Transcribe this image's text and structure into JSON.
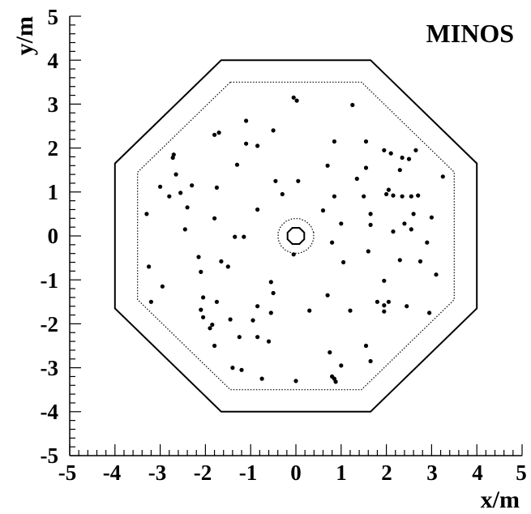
{
  "chart_data": {
    "type": "scatter",
    "title": "MINOS",
    "xlabel": "x/m",
    "ylabel": "y/m",
    "xlim": [
      -5,
      5
    ],
    "ylim": [
      -5,
      5
    ],
    "x_ticks": [
      "-5",
      "-4",
      "-3",
      "-2",
      "-1",
      "0",
      "1",
      "2",
      "3",
      "4",
      "5"
    ],
    "y_ticks": [
      "-5",
      "-4",
      "-3",
      "-2",
      "-1",
      "0",
      "1",
      "2",
      "3",
      "4",
      "5"
    ],
    "grid": false,
    "detector_outline": {
      "outer_octagon_apothem": 4.0,
      "outer_octagon_half_side": 1.65,
      "fiducial_octagon_apothem": 3.5,
      "fiducial_octagon_half_side": 1.45,
      "coil_hole_radius": 0.2,
      "coil_cut_radius": 0.4
    },
    "series": [
      {
        "points": [
          [
            -0.05,
            3.15
          ],
          [
            0.02,
            3.08
          ],
          [
            1.25,
            2.98
          ],
          [
            -1.1,
            2.62
          ],
          [
            -0.5,
            2.4
          ],
          [
            -1.8,
            2.3
          ],
          [
            -1.7,
            2.35
          ],
          [
            -1.1,
            2.1
          ],
          [
            -0.85,
            2.05
          ],
          [
            0.85,
            2.15
          ],
          [
            1.55,
            2.15
          ],
          [
            1.95,
            1.95
          ],
          [
            2.1,
            1.88
          ],
          [
            2.65,
            1.95
          ],
          [
            -2.7,
            1.85
          ],
          [
            -2.72,
            1.78
          ],
          [
            -1.3,
            1.62
          ],
          [
            0.7,
            1.6
          ],
          [
            1.55,
            1.55
          ],
          [
            2.5,
            1.75
          ],
          [
            2.35,
            1.78
          ],
          [
            2.3,
            1.5
          ],
          [
            3.25,
            1.35
          ],
          [
            -2.65,
            1.4
          ],
          [
            -0.45,
            1.25
          ],
          [
            0.05,
            1.25
          ],
          [
            1.35,
            1.3
          ],
          [
            -3.0,
            1.12
          ],
          [
            -2.3,
            1.15
          ],
          [
            -1.75,
            1.1
          ],
          [
            -2.8,
            0.9
          ],
          [
            -2.55,
            0.98
          ],
          [
            -0.3,
            0.95
          ],
          [
            0.85,
            0.9
          ],
          [
            1.5,
            0.9
          ],
          [
            2.0,
            0.95
          ],
          [
            2.05,
            1.05
          ],
          [
            2.15,
            0.92
          ],
          [
            2.35,
            0.9
          ],
          [
            2.55,
            0.9
          ],
          [
            2.7,
            0.92
          ],
          [
            -2.4,
            0.65
          ],
          [
            -0.85,
            0.6
          ],
          [
            0.6,
            0.58
          ],
          [
            1.65,
            0.5
          ],
          [
            2.6,
            0.5
          ],
          [
            -3.3,
            0.5
          ],
          [
            -1.8,
            0.4
          ],
          [
            3.0,
            0.42
          ],
          [
            1.0,
            0.28
          ],
          [
            1.65,
            0.25
          ],
          [
            2.4,
            0.28
          ],
          [
            2.15,
            0.1
          ],
          [
            2.55,
            0.15
          ],
          [
            -2.45,
            0.15
          ],
          [
            -1.35,
            -0.02
          ],
          [
            -1.15,
            -0.02
          ],
          [
            0.8,
            -0.15
          ],
          [
            2.9,
            -0.15
          ],
          [
            1.6,
            -0.35
          ],
          [
            -0.05,
            -0.42
          ],
          [
            -2.15,
            -0.48
          ],
          [
            -1.65,
            -0.58
          ],
          [
            1.05,
            -0.6
          ],
          [
            2.3,
            -0.55
          ],
          [
            2.75,
            -0.58
          ],
          [
            -3.25,
            -0.7
          ],
          [
            -1.5,
            -0.7
          ],
          [
            -2.1,
            -0.82
          ],
          [
            3.1,
            -0.88
          ],
          [
            -0.55,
            -1.05
          ],
          [
            1.95,
            -1.02
          ],
          [
            -2.95,
            -1.15
          ],
          [
            -0.5,
            -1.3
          ],
          [
            0.7,
            -1.35
          ],
          [
            -2.05,
            -1.4
          ],
          [
            -3.2,
            -1.5
          ],
          [
            -1.75,
            -1.5
          ],
          [
            1.8,
            -1.5
          ],
          [
            1.95,
            -1.58
          ],
          [
            2.05,
            -1.5
          ],
          [
            -0.85,
            -1.6
          ],
          [
            2.45,
            -1.6
          ],
          [
            -2.1,
            -1.68
          ],
          [
            0.3,
            -1.7
          ],
          [
            1.2,
            -1.7
          ],
          [
            1.95,
            -1.72
          ],
          [
            2.95,
            -1.75
          ],
          [
            -0.55,
            -1.75
          ],
          [
            -2.05,
            -1.85
          ],
          [
            -1.45,
            -1.9
          ],
          [
            -0.95,
            -1.92
          ],
          [
            -1.85,
            -2.02
          ],
          [
            -1.9,
            -2.1
          ],
          [
            -1.25,
            -2.3
          ],
          [
            -0.85,
            -2.3
          ],
          [
            -0.6,
            -2.4
          ],
          [
            -1.8,
            -2.5
          ],
          [
            1.55,
            -2.5
          ],
          [
            0.75,
            -2.65
          ],
          [
            1.65,
            -2.85
          ],
          [
            1.0,
            -2.95
          ],
          [
            -1.4,
            -3.0
          ],
          [
            -1.2,
            -3.05
          ],
          [
            0.8,
            -3.2
          ],
          [
            -0.75,
            -3.25
          ],
          [
            0.0,
            -3.3
          ],
          [
            0.85,
            -3.25
          ],
          [
            0.88,
            -3.32
          ]
        ]
      }
    ]
  }
}
